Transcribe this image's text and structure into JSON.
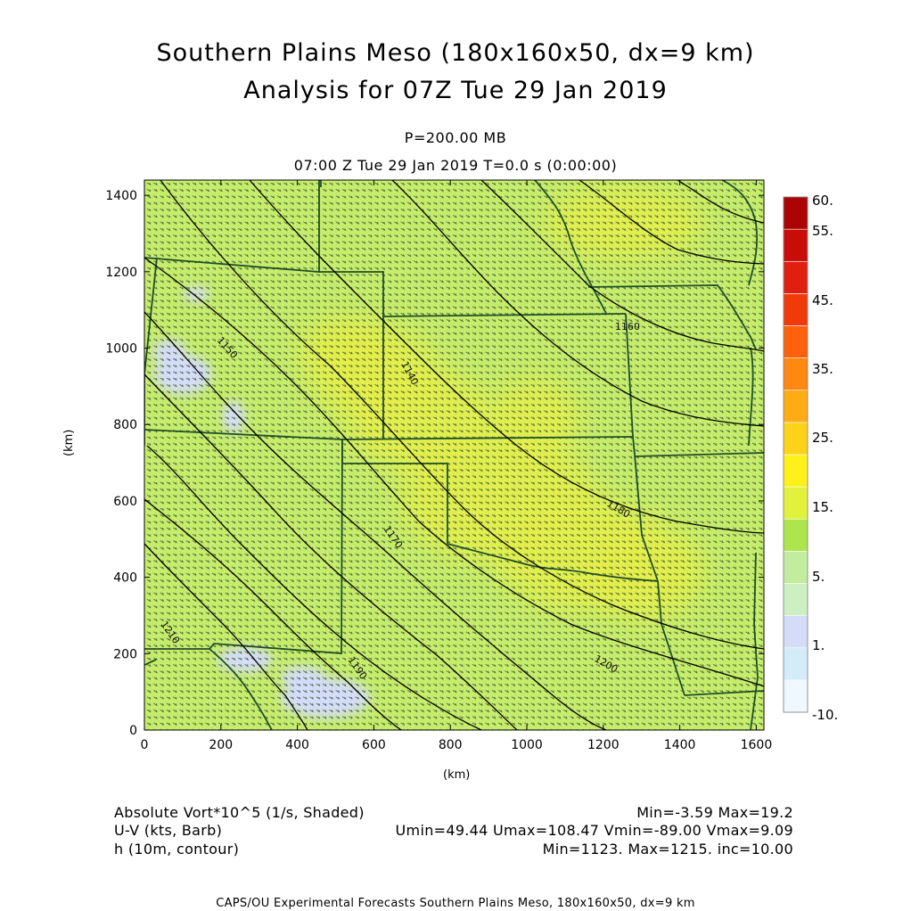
{
  "title": {
    "line1": "Southern Plains Meso (180x160x50, dx=9 km)",
    "line2": "Analysis for 07Z Tue 29 Jan 2019"
  },
  "level": "P=200.00 MB",
  "valid_time": "07:00 Z Tue 29 Jan 2019    T=0.0 s (0:00:00)",
  "axes": {
    "x_unit": "(km)",
    "y_unit": "(km)",
    "x_ticks": [
      "0",
      "200",
      "400",
      "600",
      "800",
      "1000",
      "1200",
      "1400",
      "1600"
    ],
    "y_ticks": [
      "0",
      "200",
      "400",
      "600",
      "800",
      "1000",
      "1200",
      "1400"
    ],
    "x_range": [
      0,
      1620
    ],
    "y_range": [
      0,
      1440
    ]
  },
  "colorbar": {
    "labels": [
      "60.",
      "55.",
      "45.",
      "35.",
      "25.",
      "15.",
      "5.",
      "1.",
      "-10."
    ],
    "colors": [
      "#f0f8ff",
      "#d4ecf8",
      "#d4dcf8",
      "#cdf0c2",
      "#c2ec9e",
      "#aee44c",
      "#e2f23c",
      "#fff01c",
      "#ffd21a",
      "#ffac14",
      "#ff8810",
      "#ff600c",
      "#f13a0a",
      "#df2010",
      "#c80c08",
      "#aa0404"
    ]
  },
  "contours": {
    "labels": [
      "1150",
      "1140",
      "1160",
      "1170",
      "1180",
      "1190",
      "1200",
      "1210"
    ]
  },
  "legend": {
    "field1": "Absolute Vort*10^5 (1/s, Shaded)",
    "field1_stats": "Min=-3.59 Max=19.2",
    "field2": "U-V (kts, Barb)",
    "field2_stats": "Umin=49.44 Umax=108.47 Vmin=-89.00 Vmax=9.09",
    "field3": "h (10m, contour)",
    "field3_stats": "Min=1123. Max=1215. inc=10.00"
  },
  "footer": "CAPS/OU Experimental Forecasts  Southern Plains Meso, 180x160x50, dx=9 km",
  "map_colors": {
    "background_field": "#c6ec6c",
    "high_vorticity": "#e4ee4a",
    "low_vorticity": "#d4dcf8",
    "borders": "#1f4f2a",
    "contour": "#000000",
    "barb": "#2a4430"
  }
}
